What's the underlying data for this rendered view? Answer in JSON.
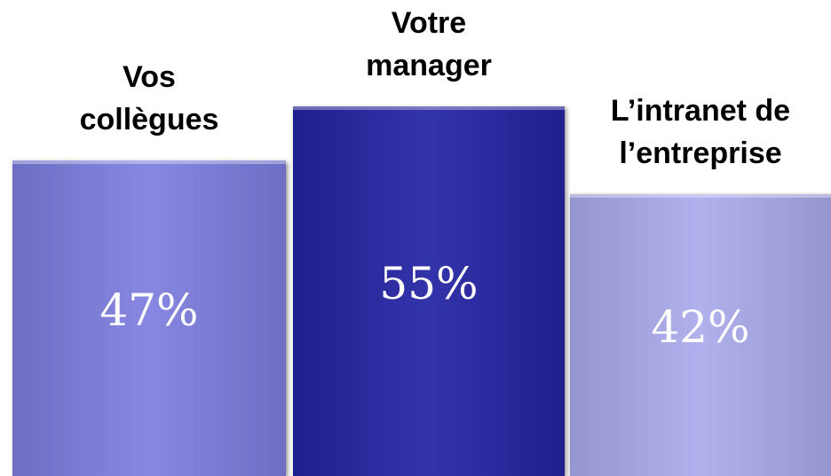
{
  "chart_data": {
    "type": "bar",
    "categories": [
      "Vos collègues",
      "Votre manager",
      "L’intranet de l’entreprise"
    ],
    "values": [
      47,
      55,
      42
    ],
    "value_labels": [
      "47%",
      "55%",
      "42%"
    ],
    "colors": [
      "#7d7ddf",
      "#2323a3",
      "#aaaaec"
    ]
  }
}
